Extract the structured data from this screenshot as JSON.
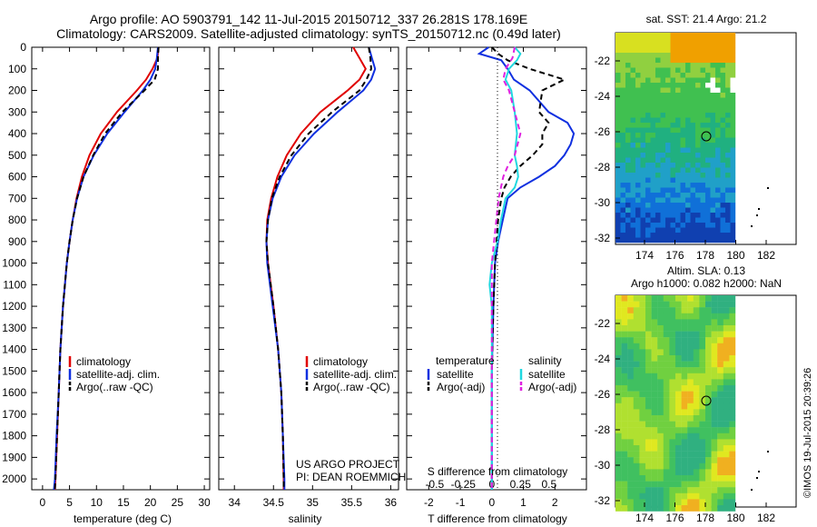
{
  "header": {
    "line1": "Argo profile: AO 5903791_142 11-Jul-2015 20150712_337 26.281S 178.169E",
    "line2": "Climatology: CARS2009. Satellite-adjusted climatology: synTS_20150712.nc (0.49d later)"
  },
  "colors": {
    "climatology": "#e00000",
    "satellite": "#1030e0",
    "argo": "#000000",
    "sal_satellite": "#20d8e0",
    "sal_argo": "#e020e0"
  },
  "depth_ticks": [
    "0",
    "100",
    "200",
    "300",
    "400",
    "500",
    "600",
    "700",
    "800",
    "900",
    "1000",
    "1100",
    "1200",
    "1300",
    "1400",
    "1500",
    "1600",
    "1700",
    "1800",
    "1900",
    "2000"
  ],
  "panels": {
    "temperature": {
      "xlabel": "temperature (deg C)",
      "xticks": [
        "0",
        "5",
        "10",
        "15",
        "20",
        "25",
        "30"
      ],
      "legend": [
        "climatology",
        "satellite-adj. clim.",
        "Argo(..raw -QC)"
      ]
    },
    "salinity": {
      "xlabel": "salinity",
      "xticks": [
        "34",
        "34.5",
        "35",
        "35.5",
        "36"
      ],
      "legend": [
        "climatology",
        "satellite-adj. clim.",
        "Argo(..raw -QC)"
      ],
      "note1": "US ARGO PROJECT",
      "note2": "PI: DEAN ROEMMICH"
    },
    "difference": {
      "xlabel": "T difference from climatology",
      "xlabel_top": "S difference from climatology",
      "s_ticks": [
        "-0.5",
        "-0.25",
        "0",
        "0.25",
        "0.5"
      ],
      "t_ticks": [
        "-2",
        "-1",
        "0",
        "1",
        "2"
      ],
      "legend_head_t": "temperature",
      "legend_head_s": "salinity",
      "legend_t": [
        "satellite",
        "Argo(-adj)"
      ],
      "legend_s": [
        "satellite",
        "Argo(-adj)"
      ]
    }
  },
  "maps": {
    "sst": {
      "title": "sat. SST: 21.4 Argo: 21.2",
      "lat_ticks": [
        "-22",
        "-24",
        "-26",
        "-28",
        "-30",
        "-32"
      ],
      "lon_ticks": [
        "174",
        "176",
        "178",
        "180",
        "182"
      ]
    },
    "sla": {
      "title1": "Altim. SLA: 0.13",
      "title2": "Argo h1000: 0.082 h2000: NaN",
      "lat_ticks": [
        "-22",
        "-24",
        "-26",
        "-28",
        "-30",
        "-32"
      ],
      "lon_ticks": [
        "174",
        "176",
        "178",
        "180",
        "182"
      ]
    }
  },
  "watermark": "©IMOS 19-Jul-2015 20:39:26",
  "chart_data": [
    {
      "type": "line",
      "title": "",
      "xlabel": "temperature (deg C)",
      "ylabel": "",
      "xlim": [
        -2,
        31
      ],
      "ylim": [
        2050,
        0
      ],
      "series": [
        {
          "name": "climatology",
          "y": [
            0,
            50,
            100,
            150,
            200,
            300,
            400,
            500,
            600,
            700,
            800,
            900,
            1000,
            1200,
            1400,
            1600,
            1800,
            2000,
            2050
          ],
          "x": [
            21.5,
            21.3,
            20.4,
            19.2,
            17.5,
            13.8,
            10.8,
            8.7,
            7.3,
            6.3,
            5.6,
            5.0,
            4.5,
            3.8,
            3.3,
            3.0,
            2.7,
            2.4,
            2.3
          ]
        },
        {
          "name": "satellite-adj. clim.",
          "y": [
            0,
            50,
            100,
            150,
            200,
            300,
            400,
            500,
            600,
            700,
            800,
            900,
            1000,
            1200,
            1400,
            1600,
            1800,
            2000,
            2050
          ],
          "x": [
            21.4,
            21.2,
            20.9,
            20.0,
            18.6,
            15.2,
            12.0,
            9.5,
            7.6,
            6.4,
            5.6,
            5.0,
            4.5,
            3.8,
            3.3,
            3.0,
            2.6,
            2.3,
            2.1
          ]
        },
        {
          "name": "Argo(..raw -QC)",
          "y": [
            0,
            50,
            100,
            150,
            200,
            300,
            400,
            500,
            600,
            700,
            800,
            900,
            1000,
            1200,
            1400,
            1600,
            1800,
            2000,
            2050
          ],
          "x": [
            21.5,
            21.4,
            21.4,
            20.8,
            18.9,
            14.8,
            11.6,
            9.4,
            7.6,
            6.4,
            5.6,
            5.0,
            4.5,
            3.8,
            3.3,
            3.0,
            2.7,
            2.4,
            2.3
          ]
        }
      ]
    },
    {
      "type": "line",
      "title": "",
      "xlabel": "salinity",
      "ylabel": "",
      "xlim": [
        33.8,
        36.1
      ],
      "ylim": [
        2050,
        0
      ],
      "series": [
        {
          "name": "climatology",
          "y": [
            0,
            50,
            100,
            150,
            200,
            300,
            400,
            500,
            600,
            700,
            800,
            900,
            1000,
            1200,
            1400,
            1600,
            1800,
            2000,
            2050
          ],
          "x": [
            35.52,
            35.6,
            35.68,
            35.6,
            35.45,
            35.1,
            34.85,
            34.67,
            34.55,
            34.47,
            34.42,
            34.41,
            34.43,
            34.5,
            34.56,
            34.6,
            34.62,
            34.63,
            34.63
          ]
        },
        {
          "name": "satellite-adj. clim.",
          "y": [
            0,
            50,
            100,
            150,
            200,
            300,
            400,
            500,
            600,
            700,
            800,
            900,
            1000,
            1200,
            1400,
            1600,
            1800,
            2000,
            2050
          ],
          "x": [
            35.72,
            35.76,
            35.8,
            35.75,
            35.65,
            35.32,
            35.02,
            34.77,
            34.6,
            34.49,
            34.43,
            34.41,
            34.42,
            34.49,
            34.56,
            34.6,
            34.62,
            34.64,
            34.64
          ]
        },
        {
          "name": "Argo(..raw -QC)",
          "y": [
            0,
            50,
            100,
            150,
            200,
            300,
            400,
            500,
            600,
            700,
            800,
            900,
            1000,
            1200,
            1400,
            1600,
            1800,
            2000,
            2050
          ],
          "x": [
            35.72,
            35.74,
            35.75,
            35.69,
            35.6,
            35.25,
            34.95,
            34.73,
            34.58,
            34.48,
            34.43,
            34.41,
            34.43,
            34.5,
            34.56,
            34.6,
            34.62,
            34.63,
            34.63
          ]
        }
      ]
    },
    {
      "type": "line",
      "title": "",
      "xlabel": "T difference from climatology",
      "ylabel": "",
      "xlim": [
        -2.7,
        3.0
      ],
      "ylim": [
        2050,
        0
      ],
      "series": [
        {
          "name": "temperature satellite",
          "y": [
            0,
            30,
            60,
            100,
            150,
            200,
            300,
            350,
            400,
            450,
            500,
            550,
            600,
            650,
            700,
            800,
            900,
            1000,
            1200,
            1500,
            2050
          ],
          "x": [
            -0.1,
            -0.4,
            0.3,
            0.5,
            0.7,
            1.2,
            1.8,
            2.4,
            2.6,
            2.5,
            2.3,
            2.0,
            1.5,
            0.9,
            0.5,
            0.35,
            0.2,
            0.1,
            0.05,
            0.0,
            0.0
          ]
        },
        {
          "name": "temperature Argo(-adj)",
          "y": [
            0,
            30,
            60,
            100,
            150,
            200,
            300,
            350,
            400,
            450,
            500,
            550,
            600,
            650,
            700,
            800,
            900,
            1000,
            1200,
            1500,
            2050
          ],
          "x": [
            0.0,
            0.2,
            0.5,
            1.2,
            2.3,
            1.6,
            1.5,
            1.8,
            1.6,
            1.6,
            1.3,
            0.9,
            0.6,
            0.4,
            0.3,
            0.2,
            0.15,
            0.1,
            0.05,
            0.0,
            0.0
          ]
        },
        {
          "name": "salinity satellite",
          "y": [
            0,
            30,
            60,
            100,
            150,
            200,
            300,
            400,
            500,
            550,
            600,
            650,
            700,
            800,
            900,
            1000,
            1100,
            1200,
            1500,
            2050
          ],
          "x": [
            0.2,
            0.25,
            0.22,
            0.15,
            0.12,
            0.17,
            0.2,
            0.22,
            0.2,
            0.22,
            0.23,
            0.2,
            0.12,
            0.08,
            0.05,
            0.0,
            -0.02,
            0.0,
            0.0,
            0.0
          ]
        },
        {
          "name": "salinity Argo(-adj)",
          "y": [
            0,
            50,
            100,
            150,
            200,
            300,
            400,
            500,
            550,
            600,
            700,
            800,
            900,
            1000,
            1200,
            1500,
            2050
          ],
          "x": [
            0.2,
            0.18,
            0.12,
            0.1,
            0.15,
            0.2,
            0.25,
            0.2,
            0.14,
            0.1,
            0.06,
            0.04,
            0.02,
            0.0,
            0.0,
            0.0,
            0.0
          ]
        }
      ]
    }
  ]
}
